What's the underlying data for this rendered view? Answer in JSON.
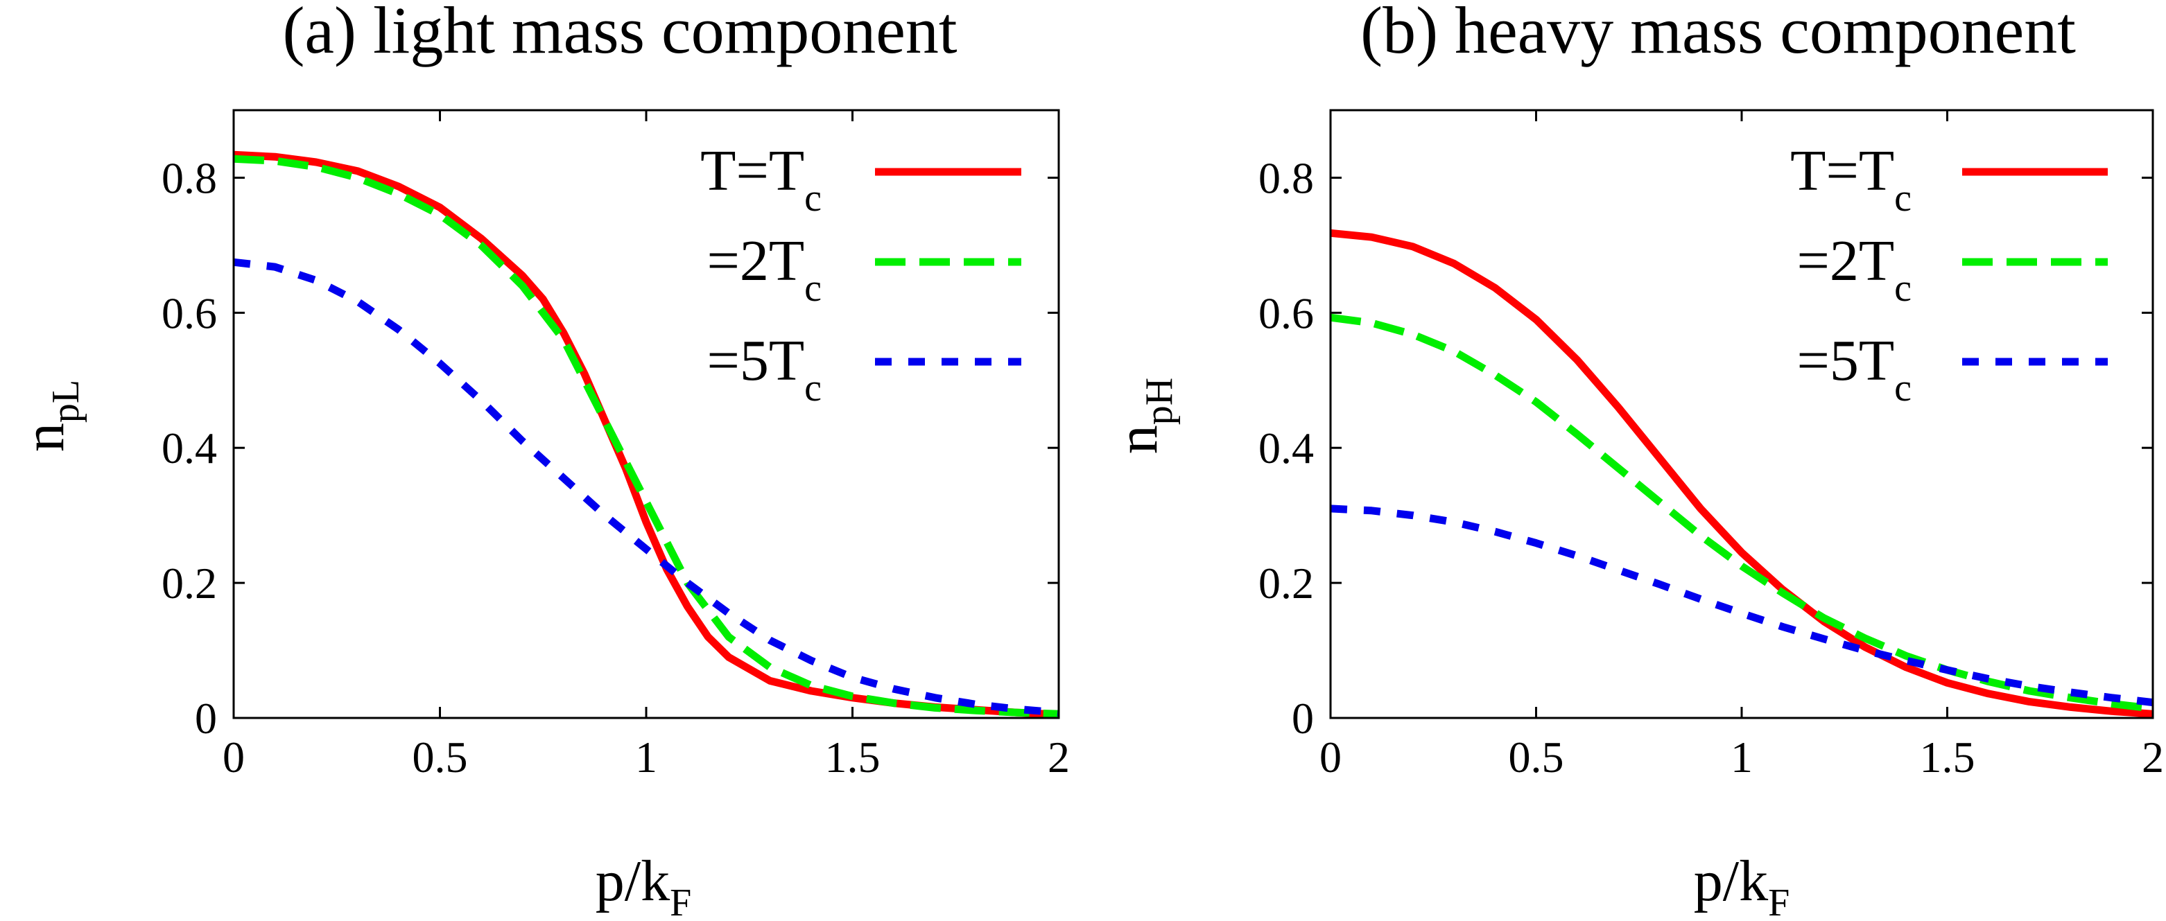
{
  "chart_data": [
    {
      "type": "line",
      "title": "(a) light mass component",
      "xlabel": {
        "main": "p/k",
        "sub": "F"
      },
      "ylabel": {
        "main": "n",
        "sub": "pL"
      },
      "xlim": [
        0,
        2
      ],
      "ylim": [
        0,
        0.9
      ],
      "xticks": [
        0,
        0.5,
        1,
        1.5,
        2
      ],
      "xtick_labels": [
        "0",
        "0.5",
        "1",
        "1.5",
        "2"
      ],
      "yticks": [
        0,
        0.2,
        0.4,
        0.6,
        0.8
      ],
      "ytick_labels": [
        "0",
        "0.2",
        "0.4",
        "0.6",
        "0.8"
      ],
      "grid": false,
      "legend_position": "top-right",
      "series": [
        {
          "name": "T=T",
          "name_sub": "c",
          "color": "#ff0000",
          "style": "solid",
          "x": [
            0,
            0.1,
            0.2,
            0.3,
            0.4,
            0.5,
            0.6,
            0.7,
            0.75,
            0.8,
            0.85,
            0.9,
            0.95,
            1.0,
            1.05,
            1.1,
            1.15,
            1.2,
            1.3,
            1.4,
            1.5,
            1.6,
            1.7,
            1.8,
            1.9,
            2.0
          ],
          "y": [
            0.834,
            0.831,
            0.823,
            0.81,
            0.787,
            0.756,
            0.71,
            0.655,
            0.62,
            0.57,
            0.51,
            0.44,
            0.37,
            0.29,
            0.22,
            0.165,
            0.12,
            0.09,
            0.055,
            0.04,
            0.03,
            0.022,
            0.016,
            0.012,
            0.008,
            0.005
          ]
        },
        {
          "name": "=2T",
          "name_sub": "c",
          "color": "#00ee00",
          "style": "dashed",
          "x": [
            0,
            0.1,
            0.2,
            0.3,
            0.4,
            0.5,
            0.6,
            0.7,
            0.8,
            0.85,
            0.9,
            0.95,
            1.0,
            1.05,
            1.1,
            1.2,
            1.3,
            1.4,
            1.5,
            1.6,
            1.7,
            1.8,
            1.9,
            2.0
          ],
          "y": [
            0.828,
            0.825,
            0.816,
            0.8,
            0.776,
            0.745,
            0.7,
            0.64,
            0.56,
            0.5,
            0.44,
            0.38,
            0.32,
            0.26,
            0.2,
            0.12,
            0.075,
            0.048,
            0.032,
            0.022,
            0.015,
            0.011,
            0.008,
            0.006
          ]
        },
        {
          "name": "=5T",
          "name_sub": "c",
          "color": "#0000ee",
          "style": "dotted",
          "x": [
            0,
            0.1,
            0.2,
            0.3,
            0.4,
            0.5,
            0.6,
            0.7,
            0.8,
            0.9,
            1.0,
            1.1,
            1.2,
            1.3,
            1.4,
            1.5,
            1.6,
            1.7,
            1.8,
            1.9,
            2.0
          ],
          "y": [
            0.675,
            0.668,
            0.648,
            0.617,
            0.575,
            0.525,
            0.47,
            0.41,
            0.355,
            0.3,
            0.25,
            0.2,
            0.155,
            0.115,
            0.085,
            0.06,
            0.043,
            0.03,
            0.02,
            0.013,
            0.008
          ]
        }
      ]
    },
    {
      "type": "line",
      "title": "(b) heavy mass component",
      "xlabel": {
        "main": "p/k",
        "sub": "F"
      },
      "ylabel": {
        "main": "n",
        "sub": "pH"
      },
      "xlim": [
        0,
        2
      ],
      "ylim": [
        0,
        0.9
      ],
      "xticks": [
        0,
        0.5,
        1,
        1.5,
        2
      ],
      "xtick_labels": [
        "0",
        "0.5",
        "1",
        "1.5",
        "2"
      ],
      "yticks": [
        0,
        0.2,
        0.4,
        0.6,
        0.8
      ],
      "ytick_labels": [
        "0",
        "0.2",
        "0.4",
        "0.6",
        "0.8"
      ],
      "grid": false,
      "legend_position": "top-right",
      "series": [
        {
          "name": "T=T",
          "name_sub": "c",
          "color": "#ff0000",
          "style": "solid",
          "x": [
            0,
            0.1,
            0.2,
            0.3,
            0.4,
            0.5,
            0.6,
            0.7,
            0.8,
            0.9,
            1.0,
            1.1,
            1.2,
            1.3,
            1.4,
            1.5,
            1.6,
            1.7,
            1.8,
            1.9,
            2.0
          ],
          "y": [
            0.718,
            0.712,
            0.698,
            0.673,
            0.637,
            0.59,
            0.53,
            0.46,
            0.385,
            0.31,
            0.245,
            0.19,
            0.143,
            0.105,
            0.075,
            0.052,
            0.036,
            0.024,
            0.016,
            0.01,
            0.006
          ]
        },
        {
          "name": "=2T",
          "name_sub": "c",
          "color": "#00ee00",
          "style": "dashed",
          "x": [
            0,
            0.1,
            0.2,
            0.3,
            0.4,
            0.5,
            0.6,
            0.7,
            0.8,
            0.9,
            1.0,
            1.1,
            1.2,
            1.3,
            1.4,
            1.5,
            1.6,
            1.7,
            1.8,
            1.9,
            2.0
          ],
          "y": [
            0.593,
            0.585,
            0.568,
            0.543,
            0.508,
            0.468,
            0.42,
            0.37,
            0.32,
            0.27,
            0.225,
            0.185,
            0.148,
            0.118,
            0.092,
            0.071,
            0.054,
            0.04,
            0.03,
            0.021,
            0.014
          ]
        },
        {
          "name": "=5T",
          "name_sub": "c",
          "color": "#0000ee",
          "style": "dotted",
          "x": [
            0,
            0.1,
            0.2,
            0.3,
            0.4,
            0.5,
            0.6,
            0.7,
            0.8,
            0.9,
            1.0,
            1.1,
            1.2,
            1.3,
            1.4,
            1.5,
            1.6,
            1.7,
            1.8,
            1.9,
            2.0
          ],
          "y": [
            0.31,
            0.307,
            0.3,
            0.29,
            0.276,
            0.259,
            0.24,
            0.219,
            0.198,
            0.176,
            0.155,
            0.135,
            0.117,
            0.1,
            0.085,
            0.071,
            0.058,
            0.047,
            0.038,
            0.03,
            0.023
          ]
        }
      ]
    }
  ]
}
